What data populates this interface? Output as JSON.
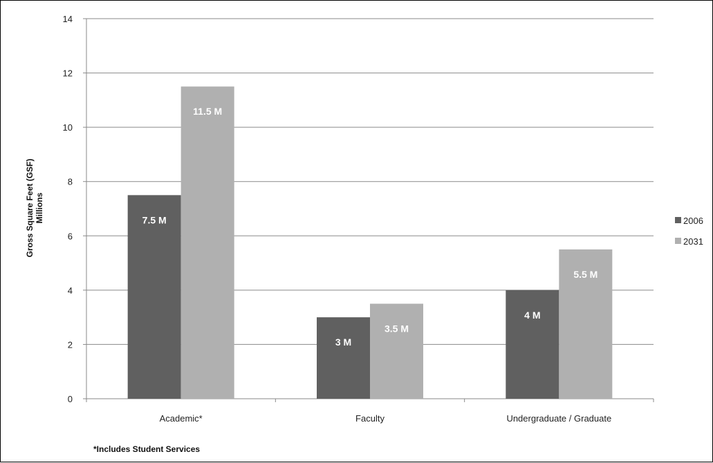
{
  "chart_data": {
    "type": "bar",
    "categories": [
      "Academic*",
      "Faculty",
      "Undergraduate / Graduate"
    ],
    "series": [
      {
        "name": "2006",
        "values": [
          7.5,
          3,
          4
        ],
        "labels": [
          "7.5 M",
          "3 M",
          "4 M"
        ],
        "color": "#606060"
      },
      {
        "name": "2031",
        "values": [
          11.5,
          3.5,
          5.5
        ],
        "labels": [
          "11.5 M",
          "3.5 M",
          "5.5 M"
        ],
        "color": "#b0b0b0"
      }
    ],
    "ylabel": "Gross Square Feet (GSF)",
    "ylabel2": "Millions",
    "ylim": [
      0,
      14
    ],
    "yticks": [
      0,
      2,
      4,
      6,
      8,
      10,
      12,
      14
    ],
    "grid": true,
    "legend_position": "right",
    "footnote": "*Includes Student Services"
  }
}
